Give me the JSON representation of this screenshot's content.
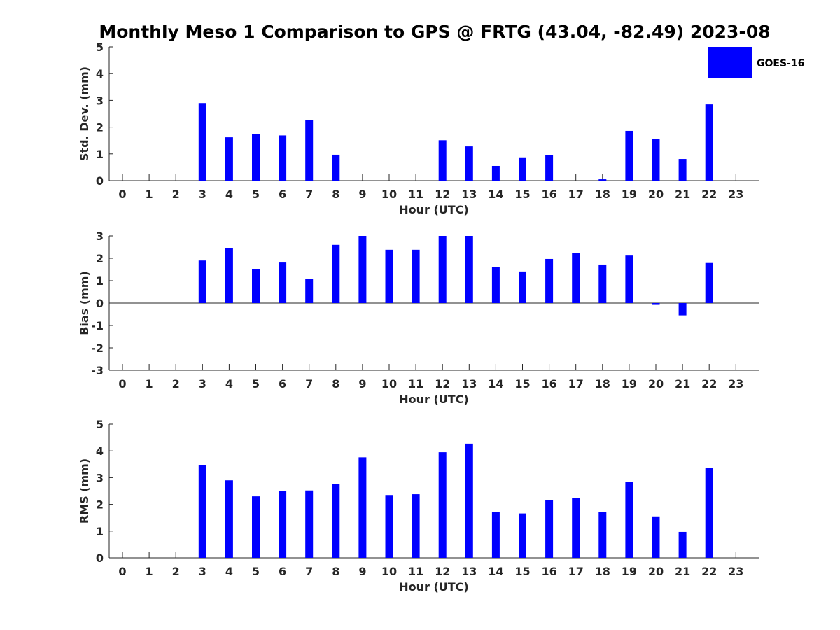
{
  "title": "Monthly Meso 1 Comparison to GPS @ FRTG (43.04, -82.49) 2023-08",
  "colors": {
    "bar": "#0000ff",
    "axis": "#262626"
  },
  "legend": {
    "label": "GOES-16",
    "placement": "top-right"
  },
  "chart_data": [
    {
      "type": "bar",
      "id": "std",
      "title": "",
      "xlabel": "Hour (UTC)",
      "ylabel": "Std. Dev. (mm)",
      "ylim": [
        0,
        5
      ],
      "yticks": [
        0,
        1,
        2,
        3,
        4,
        5
      ],
      "categories": [
        "0",
        "1",
        "2",
        "3",
        "4",
        "5",
        "6",
        "7",
        "8",
        "9",
        "10",
        "11",
        "12",
        "13",
        "14",
        "15",
        "16",
        "17",
        "18",
        "19",
        "20",
        "21",
        "22",
        "23"
      ],
      "series": [
        {
          "name": "GOES-16",
          "values": [
            null,
            null,
            null,
            2.9,
            1.62,
            1.75,
            1.69,
            2.27,
            0.97,
            null,
            null,
            null,
            1.51,
            1.28,
            0.55,
            0.87,
            0.95,
            null,
            0.05,
            1.86,
            1.55,
            0.81,
            2.85,
            null
          ]
        }
      ]
    },
    {
      "type": "bar",
      "id": "bias",
      "title": "",
      "xlabel": "Hour (UTC)",
      "ylabel": "Bias (mm)",
      "ylim": [
        -3,
        3
      ],
      "yticks": [
        -3,
        -2,
        -1,
        0,
        1,
        2,
        3
      ],
      "categories": [
        "0",
        "1",
        "2",
        "3",
        "4",
        "5",
        "6",
        "7",
        "8",
        "9",
        "10",
        "11",
        "12",
        "13",
        "14",
        "15",
        "16",
        "17",
        "18",
        "19",
        "20",
        "21",
        "22",
        "23"
      ],
      "series": [
        {
          "name": "GOES-16",
          "values": [
            null,
            null,
            null,
            1.9,
            2.44,
            1.5,
            1.81,
            1.09,
            2.6,
            3.0,
            2.38,
            2.38,
            3.0,
            3.0,
            1.62,
            1.41,
            1.97,
            2.25,
            1.72,
            2.12,
            -0.08,
            -0.55,
            1.79,
            null
          ]
        }
      ]
    },
    {
      "type": "bar",
      "id": "rms",
      "title": "",
      "xlabel": "Hour (UTC)",
      "ylabel": "RMS (mm)",
      "ylim": [
        0,
        5
      ],
      "yticks": [
        0,
        1,
        2,
        3,
        4,
        5
      ],
      "categories": [
        "0",
        "1",
        "2",
        "3",
        "4",
        "5",
        "6",
        "7",
        "8",
        "9",
        "10",
        "11",
        "12",
        "13",
        "14",
        "15",
        "16",
        "17",
        "18",
        "19",
        "20",
        "21",
        "22",
        "23"
      ],
      "series": [
        {
          "name": "GOES-16",
          "values": [
            null,
            null,
            null,
            3.48,
            2.9,
            2.3,
            2.49,
            2.52,
            2.77,
            3.76,
            2.35,
            2.38,
            3.95,
            4.27,
            1.71,
            1.66,
            2.17,
            2.25,
            1.71,
            2.83,
            1.55,
            0.97,
            3.37,
            null
          ]
        }
      ]
    }
  ]
}
